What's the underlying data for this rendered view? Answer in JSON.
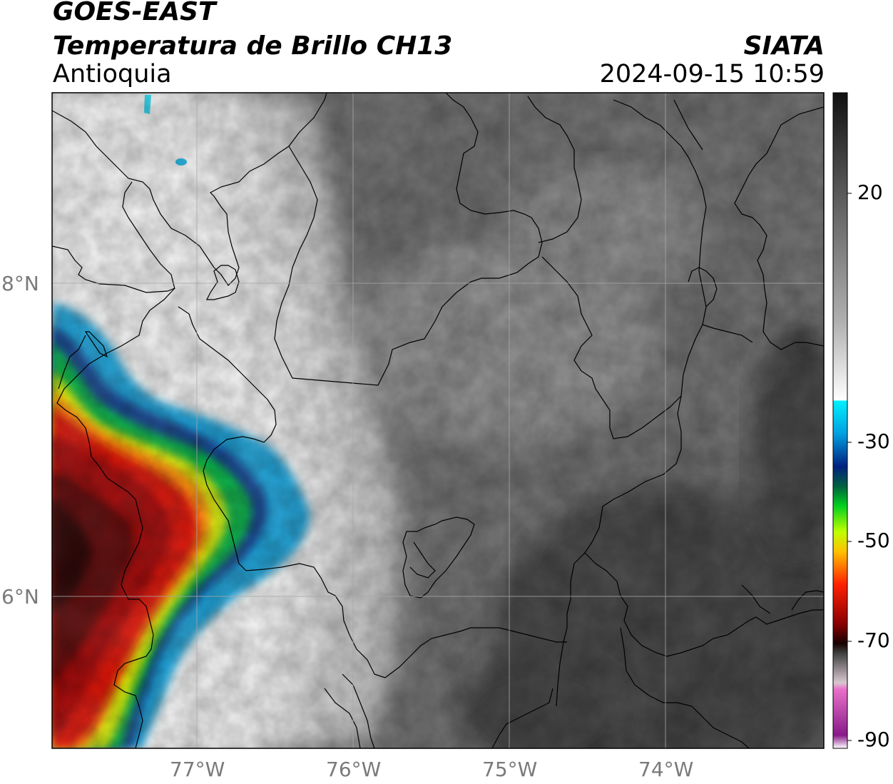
{
  "header": {
    "title_line1": "GOES-EAST",
    "title_line2": "Temperatura de Brillo CH13",
    "region": "Antioquia",
    "brand": "SIATA",
    "datetime": "2024-09-15 10:59"
  },
  "axes": {
    "lat_labels": [
      "8°N",
      "6°N"
    ],
    "lon_labels": [
      "77°W",
      "76°W",
      "75°W",
      "74°W"
    ],
    "lat_values": [
      8,
      6
    ],
    "lon_values": [
      -77,
      -76,
      -75,
      -74
    ],
    "extent": {
      "lon_min": -77.95,
      "lon_max": -73.0,
      "lat_min": 5.0,
      "lat_max": 9.2
    }
  },
  "colorbar": {
    "tick_labels": [
      "20",
      "-30",
      "-50",
      "-70",
      "-90"
    ],
    "tick_values": [
      20,
      -30,
      -50,
      -70,
      -90
    ],
    "range": [
      -90,
      40
    ]
  },
  "colors": {
    "grid": "#a8a8a8",
    "border": "#000000",
    "axis_label": "#7a7a7a"
  }
}
